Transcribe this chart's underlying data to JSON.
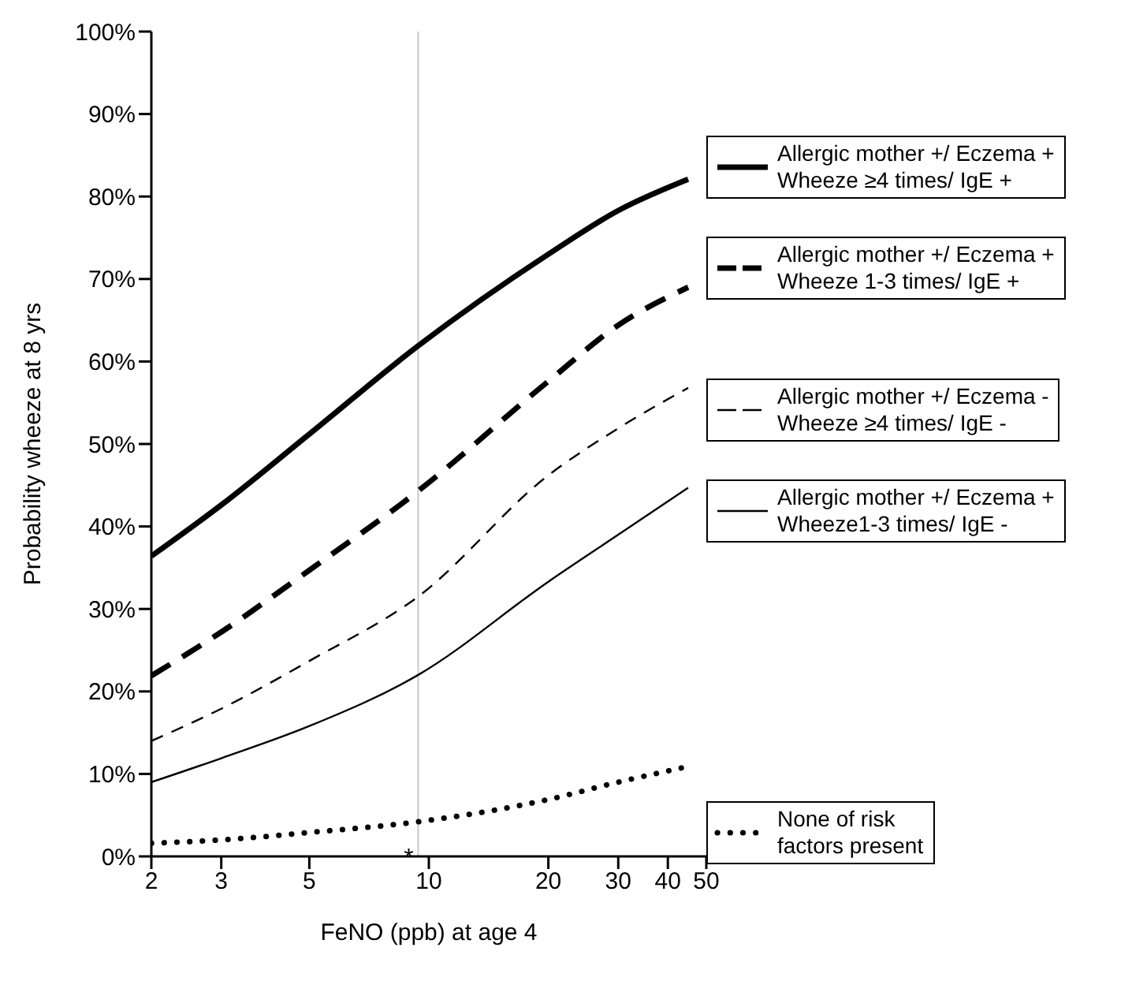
{
  "chart_data": {
    "type": "line",
    "xlabel": "FeNO (ppb) at age 4",
    "ylabel": "Probability wheeze at 8 yrs",
    "log": "x",
    "grid": false,
    "legend": "right",
    "marker": "none",
    "x": [
      2,
      3,
      5,
      9.4,
      20,
      30,
      45
    ],
    "xlim": [
      2,
      50
    ],
    "xticks": [
      2,
      3,
      5,
      10,
      20,
      30,
      40,
      50
    ],
    "ylim": [
      0,
      100
    ],
    "yticks": [
      {
        "value": 0,
        "label": "0%"
      },
      {
        "value": 10,
        "label": "10%"
      },
      {
        "value": 20,
        "label": "20%"
      },
      {
        "value": 30,
        "label": "30%"
      },
      {
        "value": 40,
        "label": "40%"
      },
      {
        "value": 50,
        "label": "50%"
      },
      {
        "value": 60,
        "label": "60%"
      },
      {
        "value": 70,
        "label": "70%"
      },
      {
        "value": 80,
        "label": "80%"
      },
      {
        "value": 90,
        "label": "90%"
      },
      {
        "value": 100,
        "label": "100%"
      }
    ],
    "ref_lines": [
      {
        "axis": "x",
        "value": 9.4,
        "label": "*",
        "color": "#c8c8c8",
        "line_style": "solid"
      }
    ],
    "series": [
      {
        "name": "Allergic mother +/ Eczema +\nWheeze ≥4 times/ IgE +",
        "color": "#000000",
        "line_style": "solid",
        "values": [
          36.4,
          42.6,
          51.2,
          61.9,
          73,
          78.3,
          82.1
        ]
      },
      {
        "name": "Allergic mother +/ Eczema +\nWheeze 1-3 times/ IgE +",
        "color": "#000000",
        "line_style": "dashed",
        "values": [
          21.9,
          27.2,
          34.7,
          44.3,
          57.6,
          64.4,
          69
        ]
      },
      {
        "name": "Allergic mother +/ Eczema -\nWheeze ≥4 times/ IgE -",
        "color": "#000000",
        "line_style": "dashed",
        "values": [
          14,
          17.9,
          23.7,
          31.5,
          46.2,
          51.9,
          56.8
        ]
      },
      {
        "name": "Allergic mother +/ Eczema +\nWheeze1-3 times/ IgE -",
        "color": "#000000",
        "line_style": "solid",
        "values": [
          9,
          11.9,
          15.8,
          22,
          33.3,
          39,
          44.7
        ]
      },
      {
        "name": "None of risk\nfactors present",
        "color": "#000000",
        "line_style": "dotted",
        "values": [
          1.6,
          2,
          2.9,
          4.2,
          6.9,
          9,
          10.9
        ]
      }
    ]
  }
}
